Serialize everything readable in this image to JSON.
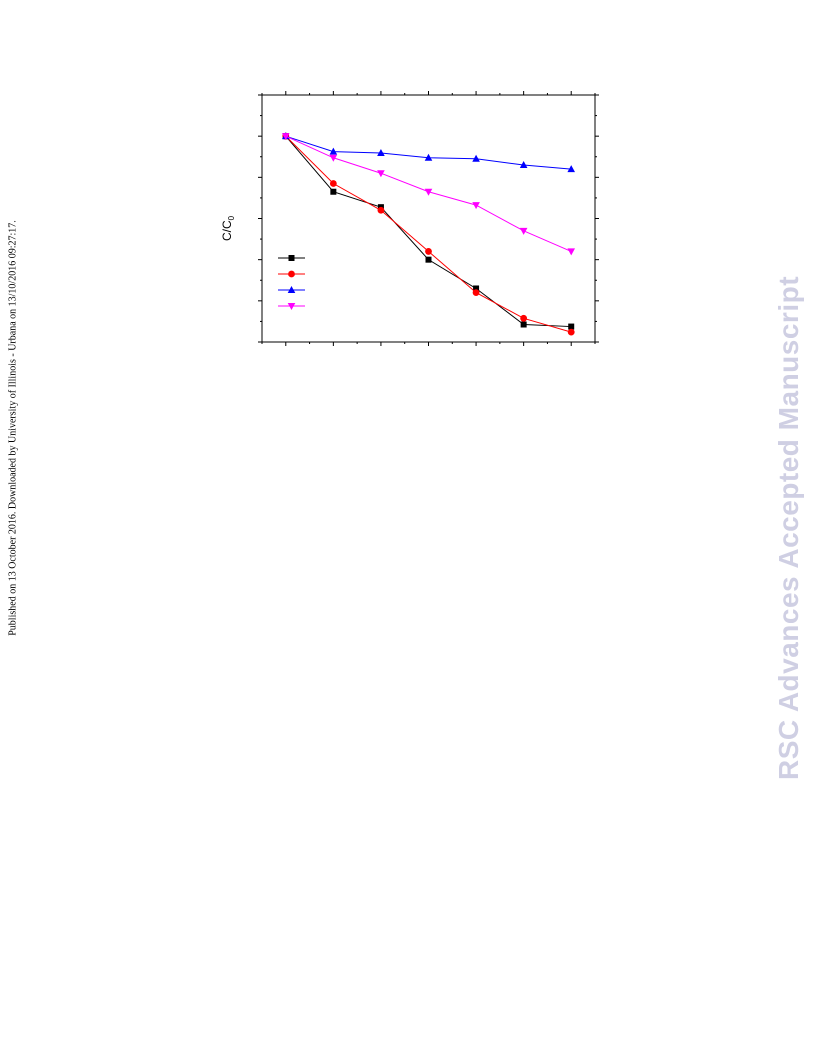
{
  "page": {
    "side_note": "Published on 13 October 2016. Downloaded by University of Illinois - Urbana on 13/10/2016 09:27:17.",
    "watermark": "RSC Advances Accepted Manuscript"
  },
  "chart_data": {
    "type": "line",
    "title": "",
    "xlabel": "",
    "ylabel_main": "C/C",
    "ylabel_sub": "0",
    "x": [
      0,
      1,
      2,
      3,
      4,
      5,
      6
    ],
    "xlim": [
      -0.5,
      6.5
    ],
    "ylim": [
      0,
      1.2
    ],
    "grid": false,
    "legend": "bottom-left",
    "series": [
      {
        "color": "#000000",
        "marker": "square",
        "values": [
          1.0,
          0.73,
          0.655,
          0.4,
          0.26,
          0.085,
          0.075
        ]
      },
      {
        "color": "#ff0000",
        "marker": "circle",
        "values": [
          1.0,
          0.77,
          0.64,
          0.44,
          0.24,
          0.115,
          0.048
        ]
      },
      {
        "color": "#0000ff",
        "marker": "triangle-up",
        "values": [
          1.0,
          0.925,
          0.918,
          0.895,
          0.89,
          0.86,
          0.84
        ]
      },
      {
        "color": "#ff00ff",
        "marker": "triangle-down",
        "values": [
          1.0,
          0.895,
          0.82,
          0.73,
          0.665,
          0.54,
          0.44
        ]
      }
    ]
  }
}
